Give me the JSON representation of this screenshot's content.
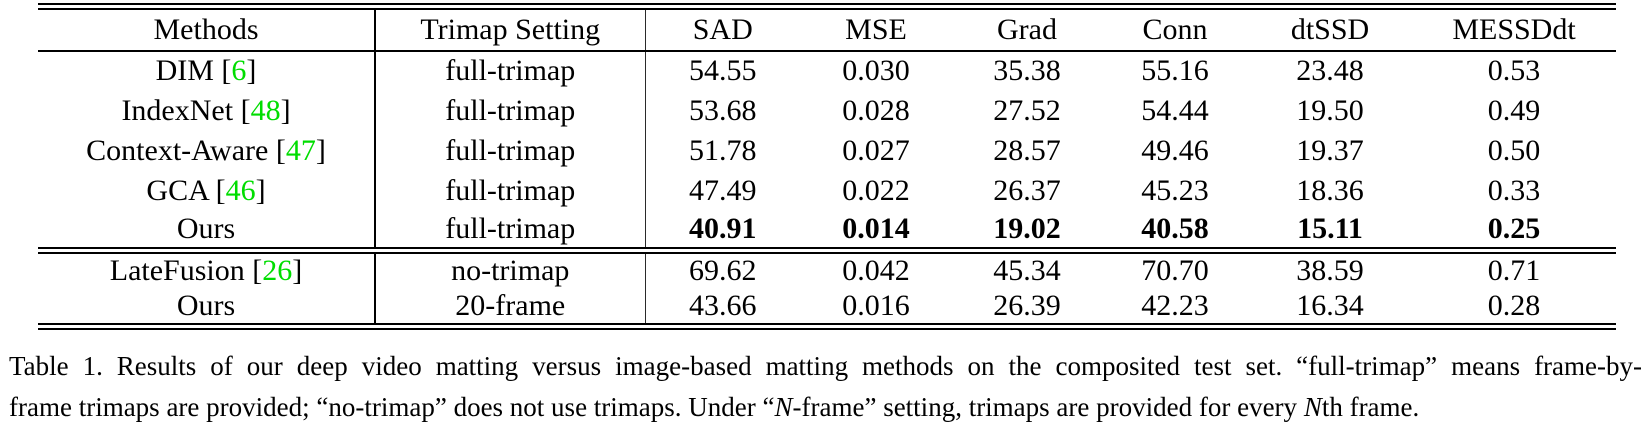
{
  "table": {
    "headers": [
      "Methods",
      "Trimap Setting",
      "SAD",
      "MSE",
      "Grad",
      "Conn",
      "dtSSD",
      "MESSDdt"
    ],
    "section1": [
      {
        "method": "DIM",
        "cite_open": " [",
        "cite_num": "6",
        "cite_close": "]",
        "setting": "full-trimap",
        "sad": "54.55",
        "mse": "0.030",
        "grad": "35.38",
        "conn": "55.16",
        "dtssd": "23.48",
        "messddt": "0.53"
      },
      {
        "method": "IndexNet",
        "cite_open": " [",
        "cite_num": "48",
        "cite_close": "]",
        "setting": "full-trimap",
        "sad": "53.68",
        "mse": "0.028",
        "grad": "27.52",
        "conn": "54.44",
        "dtssd": "19.50",
        "messddt": "0.49"
      },
      {
        "method": "Context-Aware",
        "cite_open": " [",
        "cite_num": "47",
        "cite_close": "]",
        "setting": "full-trimap",
        "sad": "51.78",
        "mse": "0.027",
        "grad": "28.57",
        "conn": "49.46",
        "dtssd": "19.37",
        "messddt": "0.50"
      },
      {
        "method": "GCA",
        "cite_open": " [",
        "cite_num": "46",
        "cite_close": "]",
        "setting": "full-trimap",
        "sad": "47.49",
        "mse": "0.022",
        "grad": "26.37",
        "conn": "45.23",
        "dtssd": "18.36",
        "messddt": "0.33"
      },
      {
        "method": "Ours",
        "setting": "full-trimap",
        "sad": "40.91",
        "mse": "0.014",
        "grad": "19.02",
        "conn": "40.58",
        "dtssd": "15.11",
        "messddt": "0.25"
      }
    ],
    "section2": [
      {
        "method": "LateFusion",
        "cite_open": " [",
        "cite_num": "26",
        "cite_close": "]",
        "setting": "no-trimap",
        "sad": "69.62",
        "mse": "0.042",
        "grad": "45.34",
        "conn": "70.70",
        "dtssd": "38.59",
        "messddt": "0.71"
      },
      {
        "method": "Ours",
        "setting": "20-frame",
        "sad": "43.66",
        "mse": "0.016",
        "grad": "26.39",
        "conn": "42.23",
        "dtssd": "16.34",
        "messddt": "0.28"
      }
    ]
  },
  "caption": {
    "line1": "Table 1. Results of our deep video matting versus image-based matting methods on the composited test set. “full-trimap” means frame-by-",
    "line2_a": "frame trimaps are provided; “no-trimap” does not use trimaps. Under “",
    "line2_n1": "N",
    "line2_b": "-frame” setting, trimaps are provided for every ",
    "line2_n2": "N",
    "line2_c": "th frame."
  },
  "colors": {
    "citation_green": "#00dd00"
  }
}
